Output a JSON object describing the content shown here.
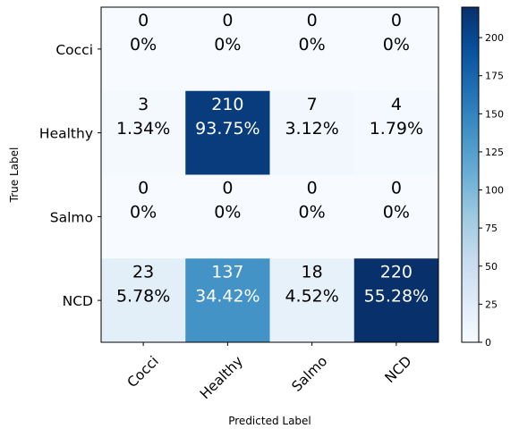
{
  "chart_data": {
    "type": "heatmap",
    "title": "",
    "xlabel": "Predicted Label",
    "ylabel": "True Label",
    "x_categories": [
      "Cocci",
      "Healthy",
      "Salmo",
      "NCD"
    ],
    "y_categories": [
      "Cocci",
      "Healthy",
      "Salmo",
      "NCD"
    ],
    "values": [
      [
        0,
        0,
        0,
        0
      ],
      [
        3,
        210,
        7,
        4
      ],
      [
        0,
        0,
        0,
        0
      ],
      [
        23,
        137,
        18,
        220
      ]
    ],
    "percentages": [
      [
        "0%",
        "0%",
        "0%",
        "0%"
      ],
      [
        "1.34%",
        "93.75%",
        "3.12%",
        "1.79%"
      ],
      [
        "0%",
        "0%",
        "0%",
        "0%"
      ],
      [
        "5.78%",
        "34.42%",
        "4.52%",
        "55.28%"
      ]
    ],
    "colormap": "Blues",
    "colorbar": {
      "range": [
        0,
        220
      ],
      "ticks": [
        0,
        25,
        50,
        75,
        100,
        125,
        150,
        175,
        200
      ]
    },
    "x_tick_rotation": 45
  }
}
